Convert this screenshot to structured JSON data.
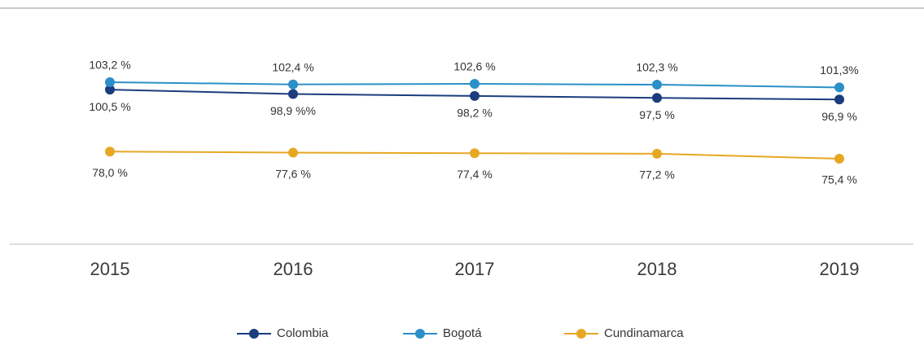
{
  "chart_data": {
    "type": "line",
    "categories": [
      "2015",
      "2016",
      "2017",
      "2018",
      "2019"
    ],
    "series": [
      {
        "name": "Colombia",
        "color": "#1b3d7e",
        "values": [
          100.5,
          98.9,
          98.2,
          97.5,
          96.9
        ],
        "value_labels": [
          "100,5 %",
          "98,9 %%",
          "98,2 %",
          "97,5 %",
          "96,9 %"
        ]
      },
      {
        "name": "Bogotá",
        "color": "#2b8fc8",
        "values": [
          103.2,
          102.4,
          102.6,
          102.3,
          101.3
        ],
        "value_labels": [
          "103,2 %",
          "102,4 %",
          "102,6 %",
          "102,3 %",
          "101,3%"
        ]
      },
      {
        "name": "Cundinamarca",
        "color": "#e6a823",
        "values": [
          78.0,
          77.6,
          77.4,
          77.2,
          75.4
        ],
        "value_labels": [
          "78,0 %",
          "77,6 %",
          "77,4 %",
          "77,2 %",
          "75,4 %"
        ]
      }
    ]
  }
}
